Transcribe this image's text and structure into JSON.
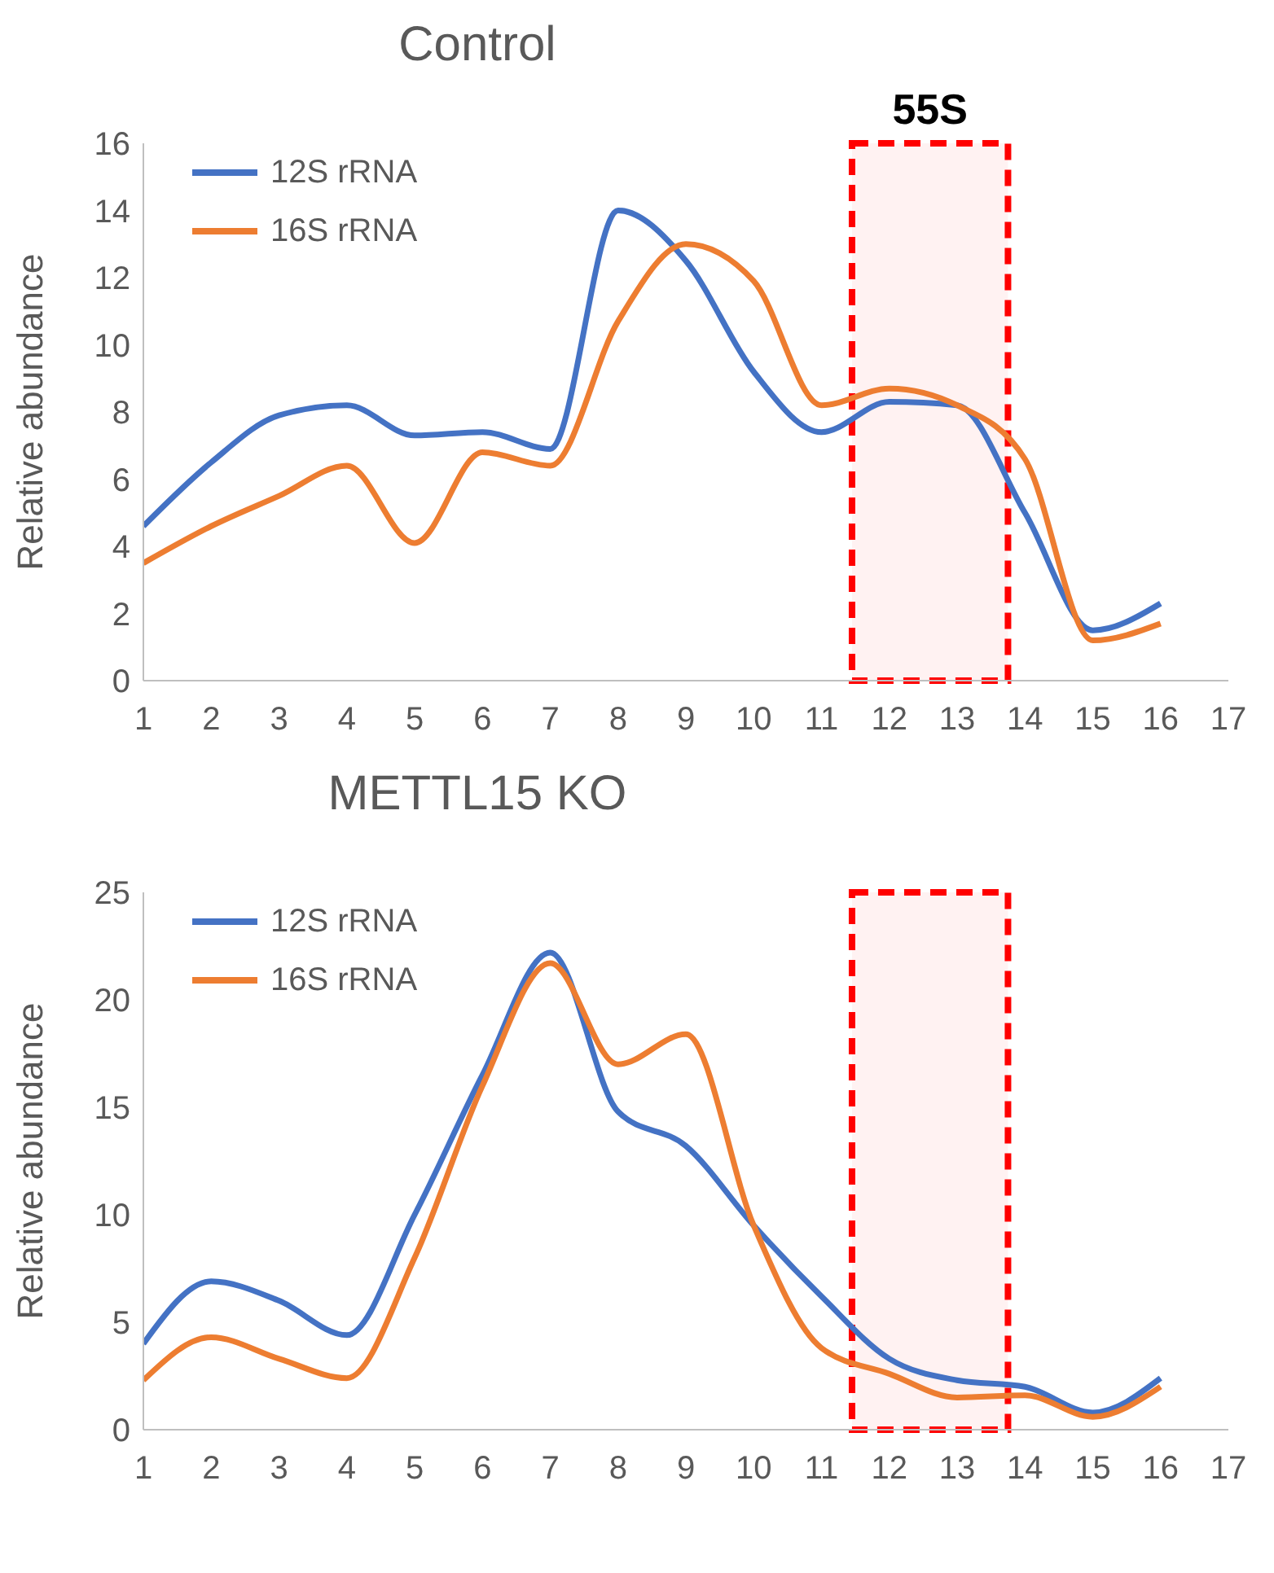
{
  "chart_data": [
    {
      "type": "line",
      "title": "Control",
      "ylabel": "Relative abundance",
      "x": [
        1,
        2,
        3,
        4,
        5,
        6,
        7,
        8,
        9,
        10,
        11,
        12,
        13,
        14,
        15,
        16
      ],
      "xlim": [
        1,
        17
      ],
      "xticks": [
        1,
        2,
        3,
        4,
        5,
        6,
        7,
        8,
        9,
        10,
        11,
        12,
        13,
        14,
        15,
        16,
        17
      ],
      "ylim": [
        0,
        16
      ],
      "yticks": [
        0,
        2,
        4,
        6,
        8,
        10,
        12,
        14,
        16
      ],
      "grid": false,
      "legend": "top left",
      "marker": "none",
      "line_style": "solid",
      "series": [
        {
          "name": "12S rRNA",
          "color": "#4472c4",
          "values": [
            4.6,
            6.5,
            7.9,
            8.2,
            7.3,
            7.4,
            6.9,
            14.0,
            12.5,
            9.2,
            7.4,
            8.3,
            8.2,
            5.0,
            1.5,
            2.3
          ]
        },
        {
          "name": "16S rRNA",
          "color": "#ed7d31",
          "values": [
            3.5,
            4.6,
            5.5,
            6.4,
            4.1,
            6.8,
            6.4,
            10.7,
            13.0,
            11.9,
            8.2,
            8.7,
            8.2,
            6.6,
            1.2,
            1.7
          ]
        }
      ],
      "bands": [
        {
          "axis": "x",
          "from": 11.45,
          "to": 13.75,
          "label": "55S",
          "color": "#ff0000"
        }
      ]
    },
    {
      "type": "line",
      "title": "METTL15 KO",
      "ylabel": "Relative abundance",
      "x": [
        1,
        2,
        3,
        4,
        5,
        6,
        7,
        8,
        9,
        10,
        11,
        12,
        13,
        14,
        15,
        16
      ],
      "xlim": [
        1,
        17
      ],
      "xticks": [
        1,
        2,
        3,
        4,
        5,
        6,
        7,
        8,
        9,
        10,
        11,
        12,
        13,
        14,
        15,
        16,
        17
      ],
      "ylim": [
        0,
        25
      ],
      "yticks": [
        0,
        5,
        10,
        15,
        20,
        25
      ],
      "grid": false,
      "legend": "top left",
      "marker": "none",
      "line_style": "solid",
      "series": [
        {
          "name": "12S rRNA",
          "color": "#4472c4",
          "values": [
            4.0,
            6.9,
            6.0,
            4.4,
            10.0,
            16.5,
            22.2,
            14.8,
            13.2,
            9.5,
            6.2,
            3.3,
            2.3,
            2.0,
            0.8,
            2.4
          ]
        },
        {
          "name": "16S rRNA",
          "color": "#ed7d31",
          "values": [
            2.3,
            4.3,
            3.3,
            2.4,
            8.0,
            16.0,
            21.7,
            17.0,
            18.4,
            9.5,
            3.8,
            2.6,
            1.5,
            1.6,
            0.6,
            2.0
          ]
        }
      ],
      "bands": [
        {
          "axis": "x",
          "from": 11.45,
          "to": 13.75,
          "label": null,
          "color": "#ff0000"
        }
      ]
    }
  ]
}
